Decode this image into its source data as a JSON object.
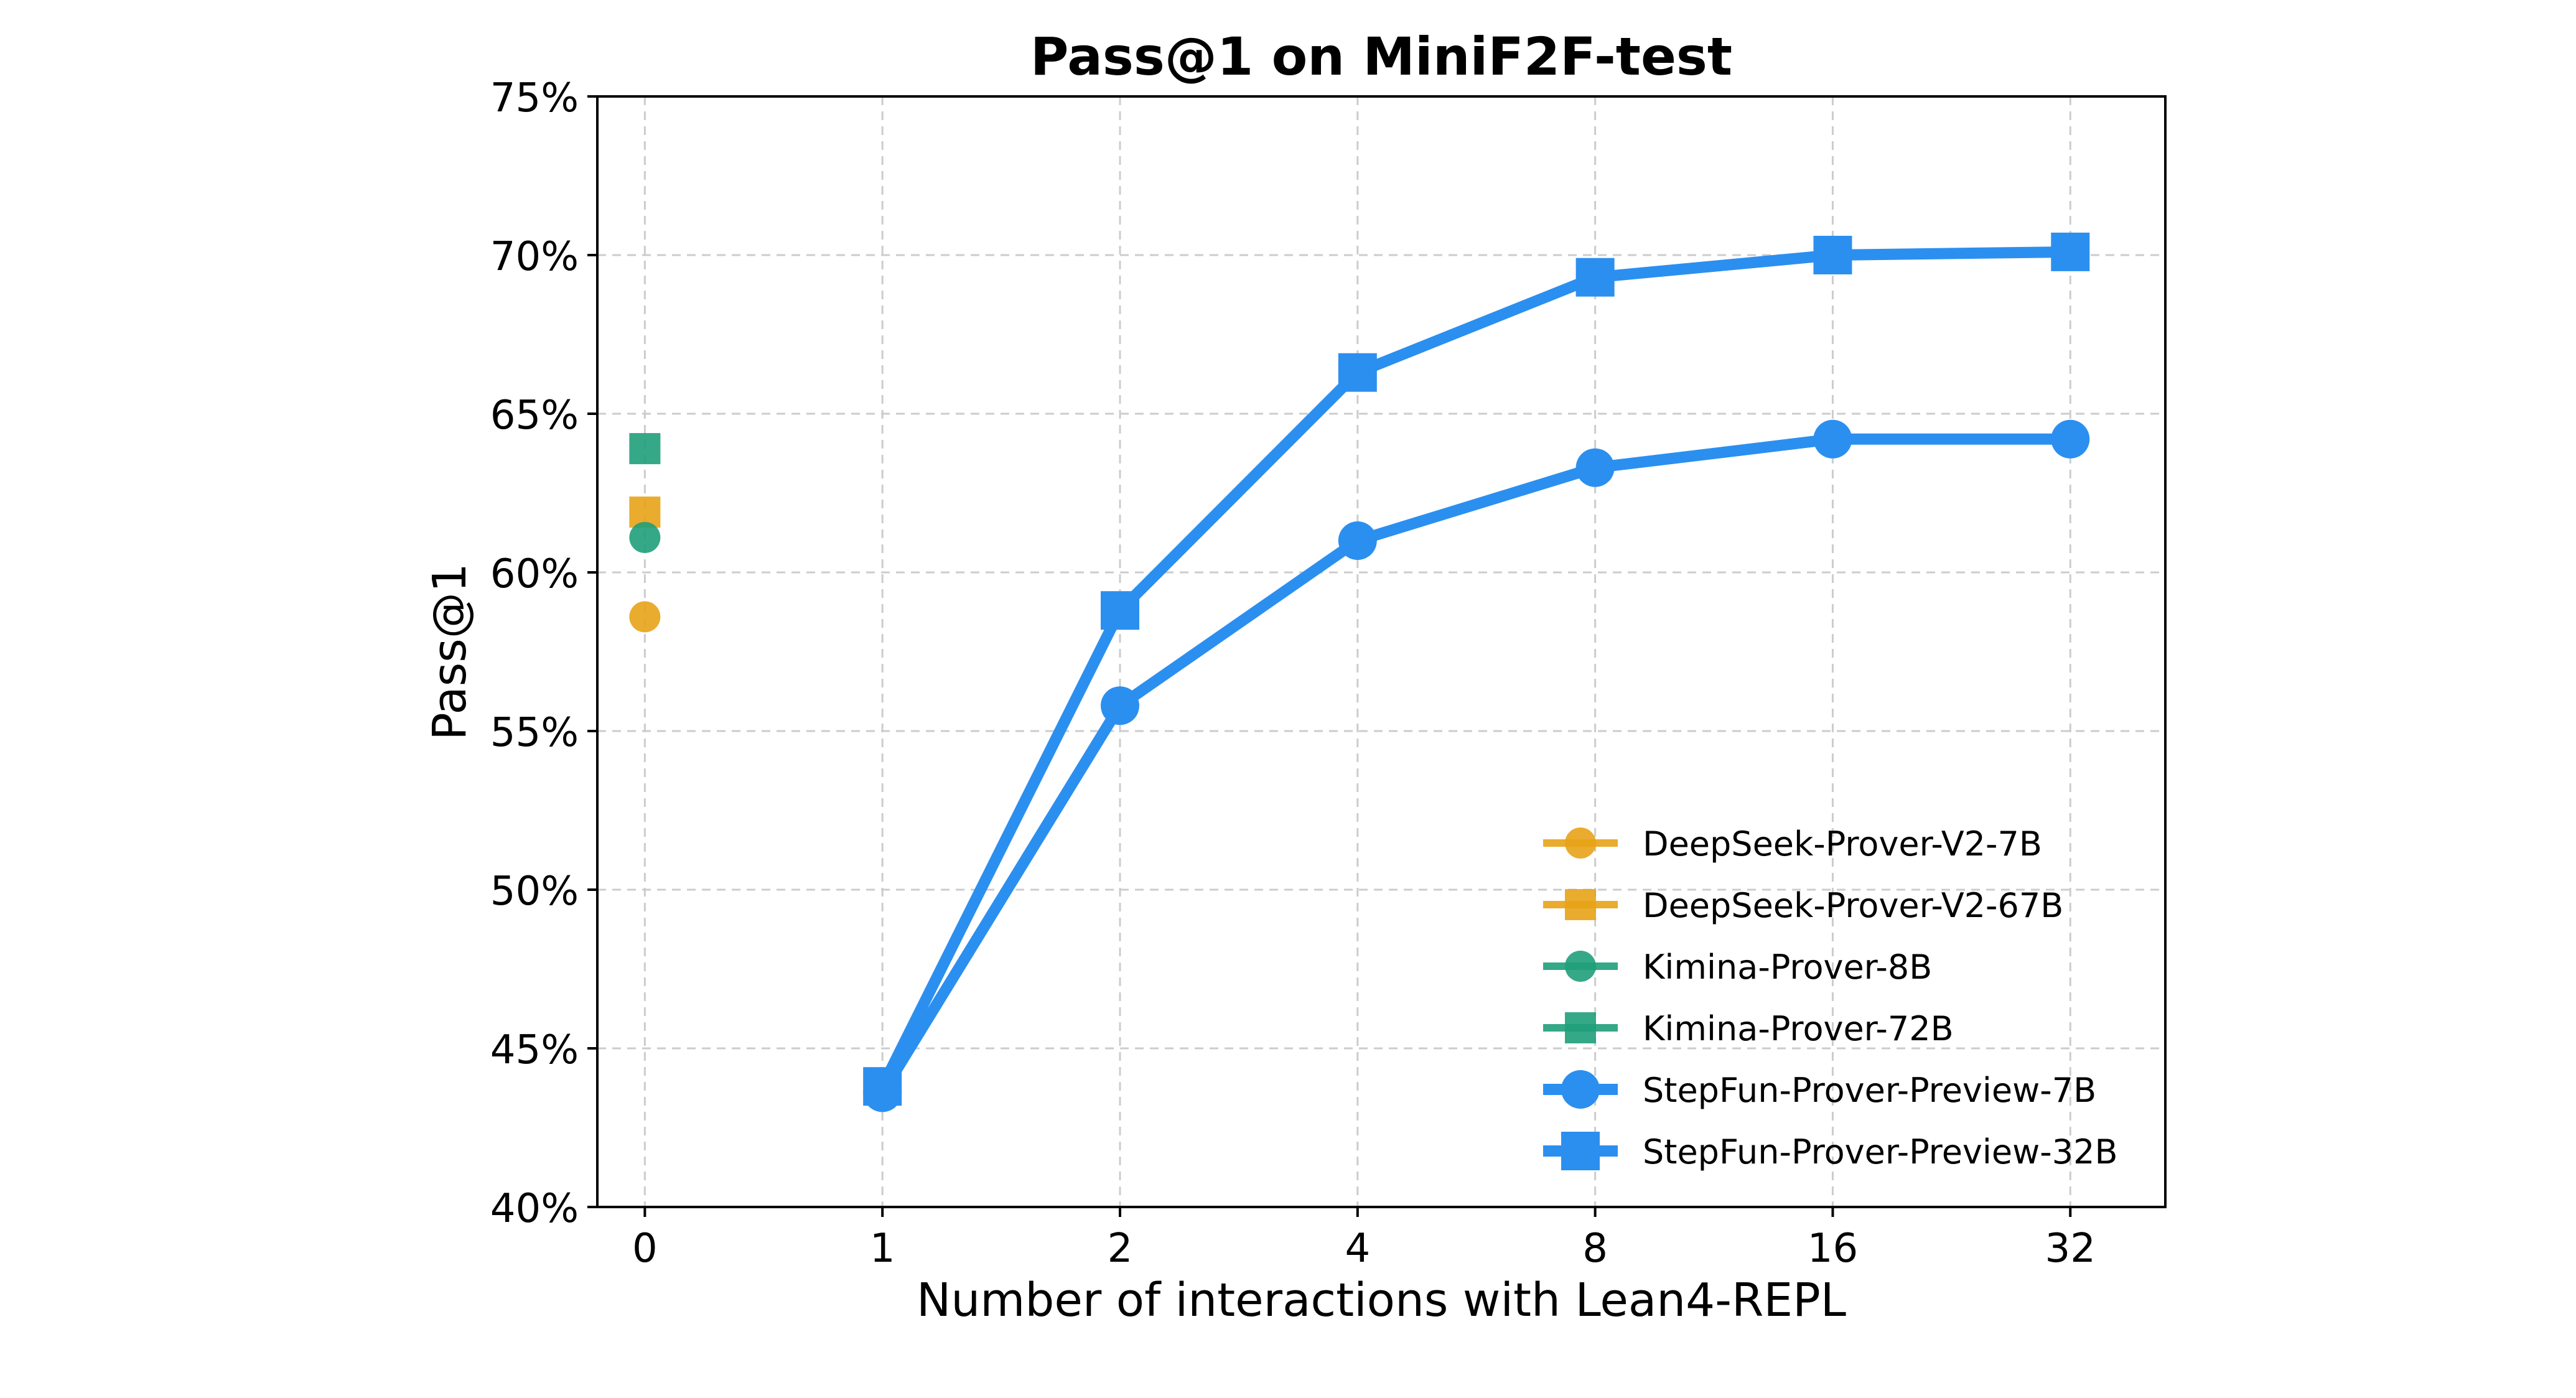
{
  "chart_data": {
    "type": "line",
    "title": "Pass@1 on MiniF2F-test",
    "xlabel": "Number of interactions with Lean4-REPL",
    "ylabel": "Pass@1",
    "x_categories": [
      "0",
      "1",
      "2",
      "4",
      "8",
      "16",
      "32"
    ],
    "ylim": [
      40,
      75
    ],
    "yticks": [
      "40%",
      "45%",
      "50%",
      "55%",
      "60%",
      "65%",
      "70%",
      "75%"
    ],
    "grid": true,
    "legend_position": "bottom-right",
    "series": [
      {
        "name": "DeepSeek-Prover-V2-7B",
        "color": "#E8A317",
        "marker": "circle",
        "points": [
          [
            0,
            58.6
          ]
        ]
      },
      {
        "name": "DeepSeek-Prover-V2-67B",
        "color": "#E8A317",
        "marker": "square",
        "points": [
          [
            0,
            61.9
          ]
        ]
      },
      {
        "name": "Kimina-Prover-8B",
        "color": "#1F9E7A",
        "marker": "circle",
        "points": [
          [
            0,
            61.1
          ]
        ]
      },
      {
        "name": "Kimina-Prover-72B",
        "color": "#1F9E7A",
        "marker": "square",
        "points": [
          [
            0,
            63.9
          ]
        ]
      },
      {
        "name": "StepFun-Prover-Preview-7B",
        "color": "#2B8FF0",
        "marker": "circle",
        "points": [
          [
            1,
            43.6
          ],
          [
            2,
            55.8
          ],
          [
            4,
            61.0
          ],
          [
            8,
            63.3
          ],
          [
            16,
            64.2
          ],
          [
            32,
            64.2
          ]
        ]
      },
      {
        "name": "StepFun-Prover-Preview-32B",
        "color": "#2B8FF0",
        "marker": "square",
        "points": [
          [
            1,
            43.8
          ],
          [
            2,
            58.8
          ],
          [
            4,
            66.3
          ],
          [
            8,
            69.3
          ],
          [
            16,
            70.0
          ],
          [
            32,
            70.1
          ]
        ]
      }
    ]
  }
}
